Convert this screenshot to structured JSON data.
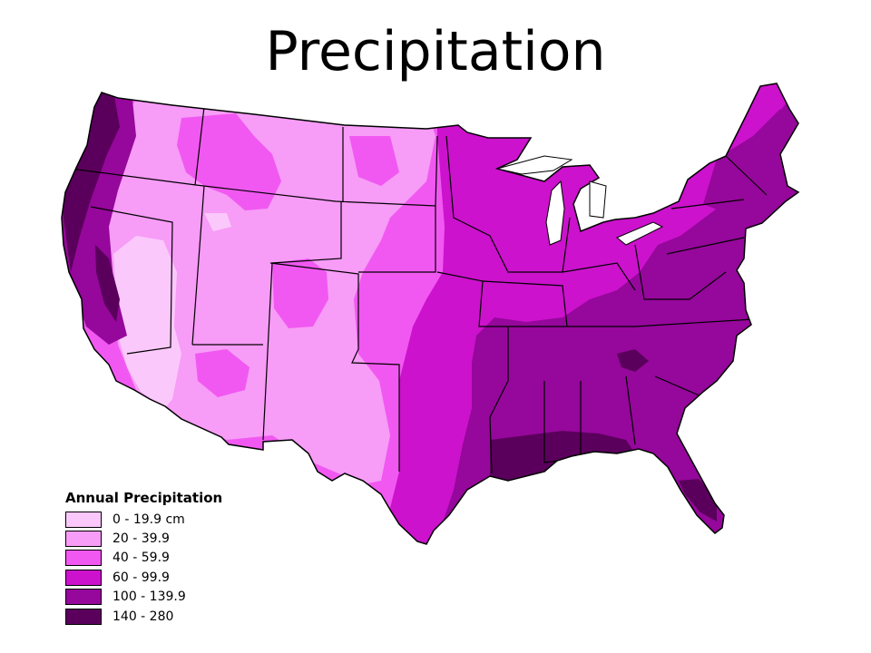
{
  "title": "Precipitation",
  "legend": {
    "title": "Annual Precipitation",
    "classes": [
      {
        "label": "0 - 19.9 cm",
        "color": "#fbc8fb"
      },
      {
        "label": "20 - 39.9",
        "color": "#f79cf7"
      },
      {
        "label": "40 - 59.9",
        "color": "#f158f1"
      },
      {
        "label": "60 - 99.9",
        "color": "#cc12cc"
      },
      {
        "label": "100 - 139.9",
        "color": "#96079b"
      },
      {
        "label": "140 - 280",
        "color": "#5a005c"
      }
    ]
  },
  "map": {
    "region": "Contiguous United States",
    "border_color": "#000000",
    "background": "#ffffff"
  }
}
